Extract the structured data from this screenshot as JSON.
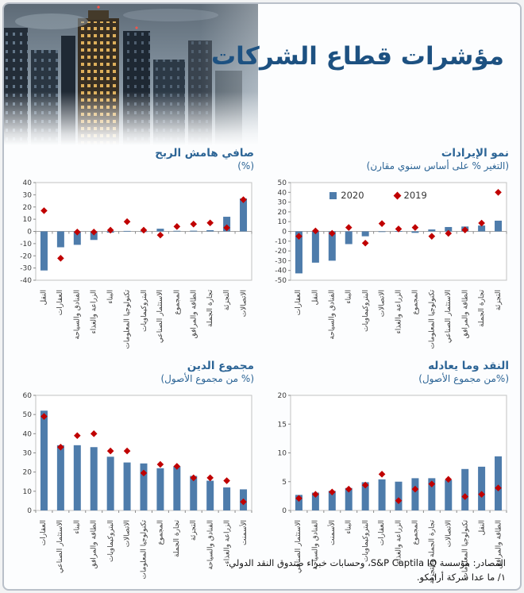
{
  "page": {
    "title": "مؤشرات قطاع الشركات",
    "footer_source": "المصادر: مؤسسة S&P Captila IQ، وحسابات خبراء صندوق النقد الدولي.",
    "footer_note": "١/ ما عدا شركة أرامكو."
  },
  "colors": {
    "bar": "#4e7cab",
    "marker": "#c00000",
    "title_main": "#1d5181",
    "title_chart": "#2d6596",
    "axis_text": "#3a3a3a",
    "plot_border": "#c2c2c2",
    "zero_line": "#a6a6a6",
    "frame": "#b9c0c9"
  },
  "chart_data": [
    {
      "id": "revenue-growth",
      "type": "bar",
      "title": "نمو الإيرادات",
      "subtitle": "(التغير % على أساس سنوي مقارن)",
      "ylim": [
        -50,
        50
      ],
      "ystep": 10,
      "grid": false,
      "legend": "inside-top",
      "categories": [
        "العقارات",
        "النقل",
        "الفنادق والسياحة",
        "البناء",
        "البتروكيماويات",
        "الاتصالات",
        "الزراعة والغذاء",
        "المجموع",
        "تكنولوجيا المعلومات",
        "الاستثمار الصناعي",
        "الطاقة والمرافق",
        "تجارة الجملة",
        "التجزئة"
      ],
      "series": [
        {
          "name": "2020",
          "type": "bar",
          "values": [
            -43,
            -32,
            -30,
            -13,
            -5,
            -0.6,
            0.4,
            -1.5,
            2,
            4.5,
            5,
            6,
            11
          ]
        },
        {
          "name": "2019",
          "type": "scatter-diamond",
          "values": [
            -5,
            0.5,
            -2,
            4,
            -12,
            8,
            2.5,
            4,
            -5,
            -2,
            1.5,
            8.5,
            40
          ]
        }
      ]
    },
    {
      "id": "net-profit-margin",
      "type": "bar",
      "title": "صافي هامش الربح",
      "subtitle": "(%)",
      "ylim": [
        -40,
        40
      ],
      "ystep": 10,
      "grid": false,
      "legend": "none",
      "categories": [
        "النقل",
        "العقارات",
        "الفنادق والسياحة",
        "الزراعة والغذاء",
        "البناء",
        "تكنولوجيا المعلومات",
        "البتروكيماويات",
        "الاستثمار الصناعي",
        "المجموع",
        "الطاقة والمرافق",
        "تجارة الجملة",
        "التجزئة",
        "الاتصالات"
      ],
      "series": [
        {
          "name": "2020",
          "type": "bar",
          "values": [
            -32,
            -13,
            -11,
            -7,
            -1,
            0.4,
            -0.4,
            2.2,
            0.5,
            0.6,
            1,
            12,
            27
          ]
        },
        {
          "name": "2019",
          "type": "scatter-diamond",
          "values": [
            17,
            -22,
            -0.5,
            -0.5,
            1,
            8,
            1,
            -3,
            4,
            6,
            7,
            3,
            26
          ]
        }
      ]
    },
    {
      "id": "cash-and-equivalents",
      "type": "bar",
      "title": "النقد وما يعادله",
      "subtitle": "(%من مجموع الأصول)",
      "ylim": [
        0,
        20
      ],
      "ystep": 5,
      "grid": false,
      "legend": "none",
      "categories": [
        "الاستثمار الصناعي",
        "الفنادق والسياحة",
        "الأسمنت",
        "البناء",
        "البتروكيماويات",
        "العقارات",
        "الزراعة والغذاء",
        "المجموع",
        "تجارة الجملة والتجزئة",
        "الاتصالات",
        "تكنولوجيا المعلومات",
        "النقل",
        "الطاقة والمرافق"
      ],
      "series": [
        {
          "name": "2020",
          "type": "bar",
          "values": [
            2.7,
            3.1,
            3.4,
            3.9,
            4.9,
            5.4,
            5.0,
            5.6,
            5.6,
            5.3,
            7.2,
            7.6,
            9.4
          ]
        },
        {
          "name": "2019",
          "type": "scatter-diamond",
          "values": [
            2.1,
            2.8,
            3.2,
            3.7,
            4.4,
            6.3,
            1.7,
            3.7,
            4.6,
            5.4,
            2.4,
            2.8,
            3.9
          ]
        }
      ]
    },
    {
      "id": "total-debt",
      "type": "bar",
      "title": "مجموع الدين",
      "subtitle": "(% من مجموع الأصول)",
      "ylim": [
        0,
        60
      ],
      "ystep": 10,
      "grid": false,
      "legend": "none",
      "categories": [
        "العقارات",
        "الاستثمار الصناعي",
        "البناء",
        "الطاقة والمرافق",
        "البتروكيماويات",
        "الاتصالات",
        "تكنولوجيا المعلومات",
        "المجموع",
        "تجارة الجملة",
        "التجزئة",
        "الفنادق والسياحة",
        "الزراعة والغذاء",
        "الأسمنت"
      ],
      "series": [
        {
          "name": "2020",
          "type": "bar",
          "values": [
            52,
            34,
            34,
            33,
            28,
            25,
            24.5,
            22,
            23,
            18,
            15.5,
            12,
            11
          ]
        },
        {
          "name": "2019",
          "type": "scatter-diamond",
          "values": [
            49,
            33,
            39,
            40,
            31,
            31,
            19.5,
            24,
            23,
            17,
            17,
            15.5,
            4.5
          ]
        }
      ]
    }
  ]
}
